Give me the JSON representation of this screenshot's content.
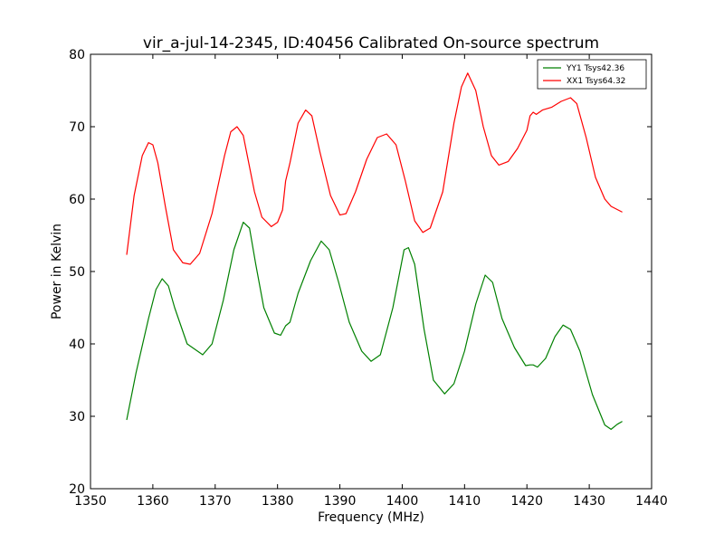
{
  "chart_data": {
    "type": "line",
    "title": "vir_a-jul-14-2345, ID:40456 Calibrated On-source spectrum",
    "xlabel": "Frequency (MHz)",
    "ylabel": "Power in Kelvin",
    "xlim": [
      1350,
      1440
    ],
    "ylim": [
      20,
      80
    ],
    "xticks": [
      1350,
      1360,
      1370,
      1380,
      1390,
      1400,
      1410,
      1420,
      1430,
      1440
    ],
    "yticks": [
      20,
      30,
      40,
      50,
      60,
      70,
      80
    ],
    "grid": false,
    "legend_position": "top-right",
    "series": [
      {
        "name": "YY1 Tsys42.36",
        "color": "#008000",
        "x": [
          1355.8,
          1357.3,
          1359.3,
          1360.5,
          1361.5,
          1362.5,
          1363.5,
          1365.5,
          1368.0,
          1369.5,
          1371.3,
          1373.0,
          1374.5,
          1375.5,
          1376.5,
          1377.8,
          1379.5,
          1380.5,
          1381.3,
          1382.0,
          1383.3,
          1385.3,
          1387.0,
          1388.3,
          1389.8,
          1391.5,
          1393.5,
          1395.0,
          1396.5,
          1398.5,
          1400.3,
          1401.0,
          1402.0,
          1403.5,
          1405.0,
          1406.8,
          1408.3,
          1410.0,
          1411.8,
          1413.3,
          1414.5,
          1416.0,
          1418.0,
          1419.8,
          1420.5,
          1421.0,
          1421.7,
          1423.0,
          1424.5,
          1425.8,
          1427.0,
          1428.5,
          1430.5,
          1432.5,
          1433.5,
          1434.5,
          1435.3
        ],
        "y": [
          29.5,
          36.0,
          43.5,
          47.5,
          49.0,
          48.0,
          45.0,
          40.0,
          38.5,
          40.0,
          46.0,
          53.0,
          56.8,
          56.0,
          51.0,
          45.0,
          41.5,
          41.2,
          42.5,
          43.0,
          47.0,
          51.5,
          54.2,
          53.0,
          48.5,
          43.0,
          39.0,
          37.6,
          38.5,
          45.0,
          53.0,
          53.3,
          51.0,
          42.0,
          35.0,
          33.1,
          34.5,
          39.0,
          45.5,
          49.5,
          48.5,
          43.5,
          39.5,
          37.0,
          37.1,
          37.1,
          36.8,
          38.0,
          41.0,
          42.6,
          42.0,
          39.0,
          33.0,
          28.8,
          28.2,
          28.9,
          29.3
        ]
      },
      {
        "name": "XX1 Tsys64.32",
        "color": "#ff0000",
        "x": [
          1355.8,
          1357.0,
          1358.3,
          1359.3,
          1360.0,
          1360.8,
          1362.0,
          1363.3,
          1364.8,
          1366.0,
          1367.5,
          1369.5,
          1371.5,
          1372.5,
          1373.5,
          1374.5,
          1376.3,
          1377.5,
          1379.0,
          1380.0,
          1380.8,
          1381.3,
          1382.0,
          1383.3,
          1384.5,
          1385.5,
          1386.8,
          1388.5,
          1390.0,
          1391.0,
          1392.5,
          1394.3,
          1396.0,
          1397.5,
          1399.0,
          1400.5,
          1402.0,
          1403.3,
          1404.5,
          1406.5,
          1408.3,
          1409.5,
          1410.5,
          1411.8,
          1413.0,
          1414.3,
          1415.5,
          1417.0,
          1418.5,
          1420.0,
          1420.5,
          1421.0,
          1421.5,
          1422.5,
          1424.0,
          1425.5,
          1427.0,
          1428.0,
          1429.5,
          1431.0,
          1432.5,
          1433.5,
          1435.3
        ],
        "y": [
          52.3,
          60.5,
          66.0,
          67.8,
          67.5,
          65.0,
          59.0,
          53.0,
          51.2,
          51.0,
          52.5,
          58.0,
          66.0,
          69.3,
          70.0,
          68.8,
          61.0,
          57.5,
          56.2,
          56.8,
          58.5,
          62.5,
          65.0,
          70.5,
          72.3,
          71.5,
          66.5,
          60.5,
          57.8,
          58.0,
          61.0,
          65.5,
          68.5,
          69.0,
          67.5,
          62.5,
          57.0,
          55.4,
          56.0,
          61.0,
          70.5,
          75.5,
          77.4,
          75.0,
          70.0,
          66.0,
          64.7,
          65.2,
          67.0,
          69.5,
          71.5,
          72.0,
          71.7,
          72.3,
          72.7,
          73.5,
          74.0,
          73.2,
          68.5,
          63.0,
          60.0,
          59.0,
          58.2
        ]
      }
    ]
  }
}
